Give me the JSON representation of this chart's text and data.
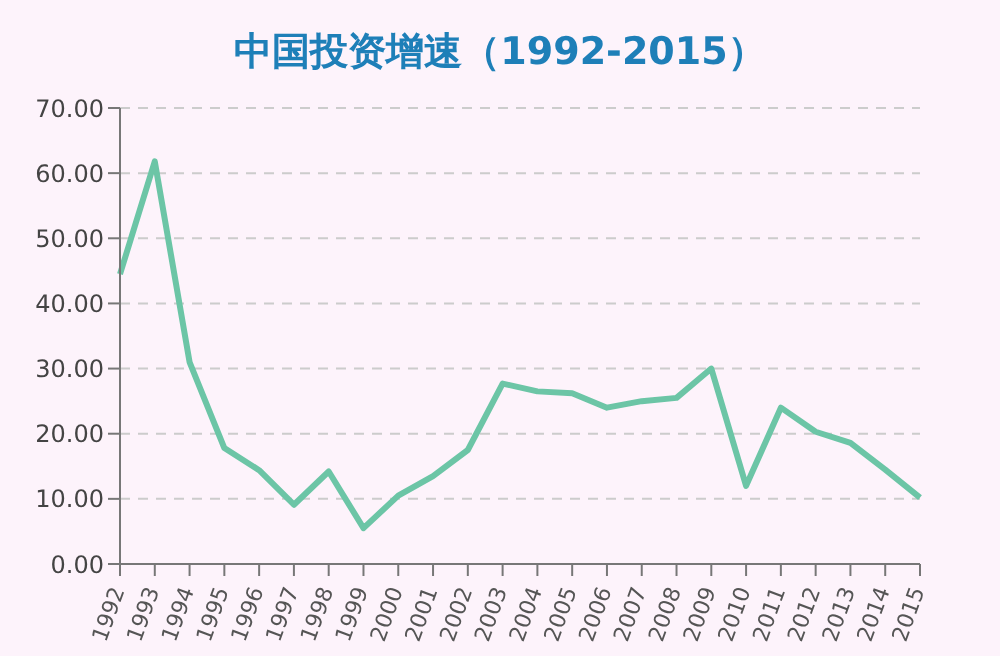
{
  "chart_data": {
    "type": "line",
    "title": "中国投资增速（1992-2015）",
    "categories": [
      "1992",
      "1993",
      "1994",
      "1995",
      "1996",
      "1997",
      "1998",
      "1999",
      "2000",
      "2001",
      "2002",
      "2003",
      "2004",
      "2005",
      "2006",
      "2007",
      "2008",
      "2009",
      "2010",
      "2011",
      "2012",
      "2013",
      "2014",
      "2015"
    ],
    "series": [
      {
        "color": "#6cc5a6",
        "values": [
          44.5,
          61.8,
          31,
          17.8,
          14.4,
          9.1,
          14.2,
          5.5,
          10.5,
          13.5,
          17.5,
          27.7,
          26.5,
          26.2,
          24,
          25,
          25.5,
          30,
          12,
          24,
          20.3,
          18.6,
          14.5,
          10.2
        ]
      }
    ],
    "ylim": [
      0,
      70
    ],
    "yticks": [
      {
        "value": 0,
        "label": "0.00"
      },
      {
        "value": 10,
        "label": "10.00"
      },
      {
        "value": 20,
        "label": "20.00"
      },
      {
        "value": 30,
        "label": "30.00"
      },
      {
        "value": 40,
        "label": "40.00"
      },
      {
        "value": 50,
        "label": "50.00"
      },
      {
        "value": 60,
        "label": "60.00"
      },
      {
        "value": 70,
        "label": "70.00"
      }
    ],
    "grid": "y",
    "marker": "none",
    "line_style": "solid",
    "legend": false
  }
}
